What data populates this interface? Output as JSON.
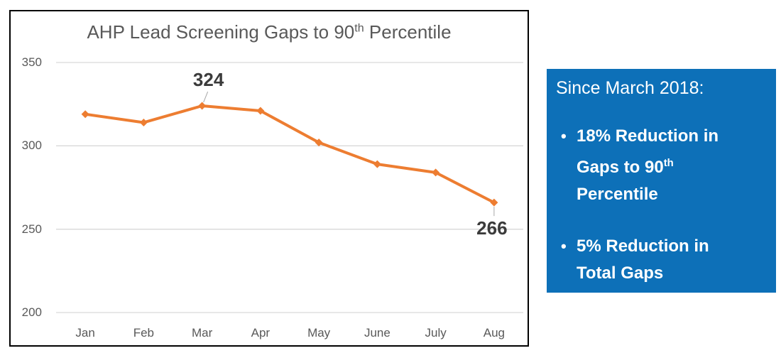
{
  "chart": {
    "title": {
      "before_sup": "AHP Lead Screening Gaps to 90",
      "sup": "th",
      "after_sup": " Percentile"
    }
  },
  "chart_data": {
    "type": "line",
    "title": "AHP Lead Screening Gaps to 90th Percentile",
    "categories": [
      "Jan",
      "Feb",
      "Mar",
      "Apr",
      "May",
      "June",
      "July",
      "Aug"
    ],
    "values": [
      319,
      314,
      324,
      321,
      302,
      289,
      284,
      266
    ],
    "ylim": [
      200,
      350
    ],
    "yticks": [
      200,
      250,
      300,
      350
    ],
    "grid": "horizontal-only",
    "legend": "none",
    "line_color": "#ED7D31",
    "marker": "diamond",
    "data_labels": [
      {
        "index": 2,
        "text": "324",
        "position": "above"
      },
      {
        "index": 7,
        "text": "266",
        "position": "below"
      }
    ]
  },
  "panel": {
    "heading": "Since March 2018:",
    "bullets": [
      {
        "lines": [
          {
            "text": "18% Reduction in"
          },
          {
            "text": "Gaps to 90",
            "sup": "th"
          },
          {
            "text": "Percentile"
          }
        ]
      },
      {
        "lines": [
          {
            "text": "5% Reduction in"
          },
          {
            "text": "Total Gaps"
          }
        ]
      }
    ],
    "bullet_glyph": "•"
  },
  "colors": {
    "accent_orange": "#ED7D31",
    "panel_blue": "#0d70b8",
    "gridline": "#D9D9D9",
    "axis_text": "#595959",
    "data_label_text": "#3b3b3b",
    "leader_line": "#a6a6a6",
    "chart_border": "#000000"
  }
}
